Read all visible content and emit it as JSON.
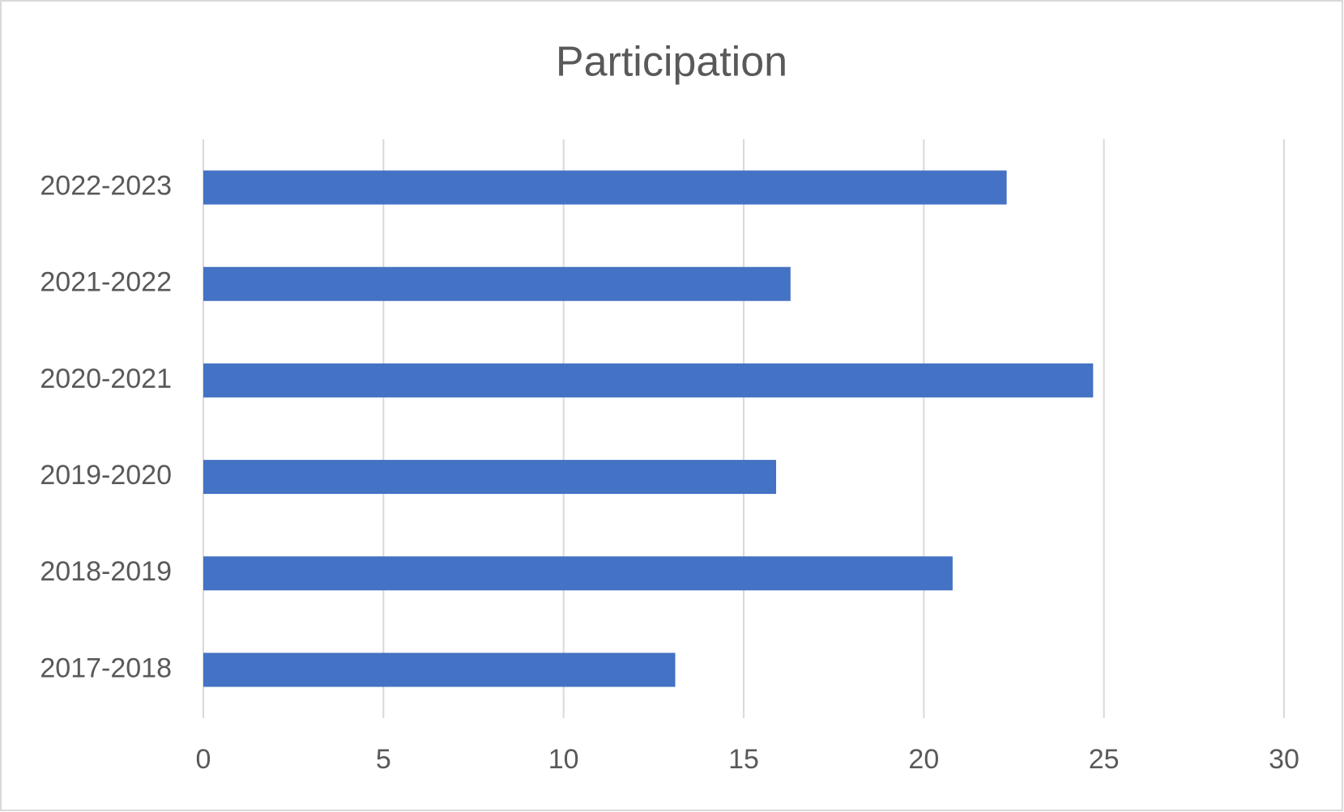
{
  "chart_data": {
    "type": "hbar",
    "title": "Participation",
    "categories": [
      "2017-2018",
      "2018-2019",
      "2019-2020",
      "2020-2021",
      "2021-2022",
      "2022-2023"
    ],
    "values": [
      13.1,
      20.8,
      15.9,
      24.7,
      16.3,
      22.3
    ],
    "color": "#4472c4",
    "xlim": [
      0,
      30
    ],
    "xticks": [
      0,
      5,
      10,
      15,
      20,
      25,
      30
    ],
    "grid": true
  }
}
